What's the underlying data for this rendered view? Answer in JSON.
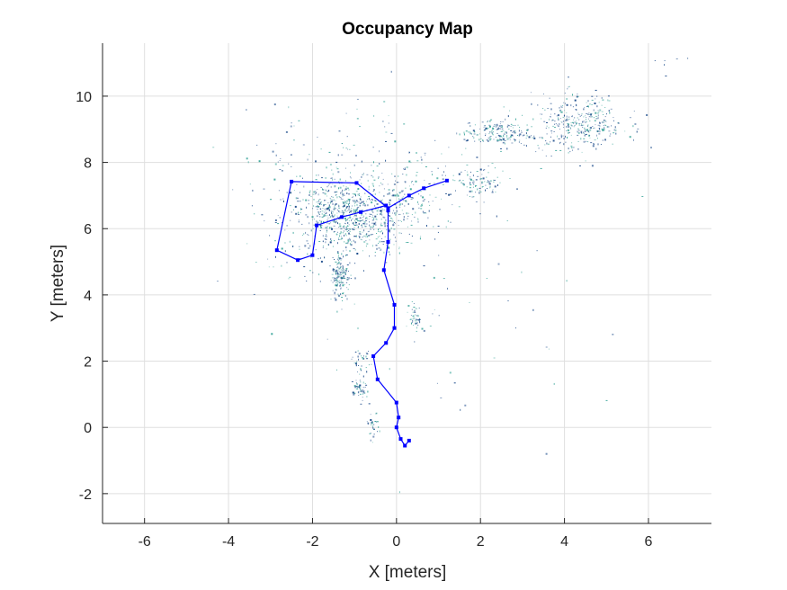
{
  "chart_data": {
    "type": "scatter",
    "title": "Occupancy Map",
    "xlabel": "X [meters]",
    "ylabel": "Y [meters]",
    "xlim": [
      -7,
      7.5
    ],
    "ylim": [
      -2.9,
      11.6
    ],
    "xticks": [
      -6,
      -4,
      -2,
      0,
      2,
      4,
      6
    ],
    "yticks": [
      -2,
      0,
      2,
      4,
      6,
      8,
      10
    ],
    "xtick_labels": [
      "-6",
      "-4",
      "-2",
      "0",
      "2",
      "4",
      "6"
    ],
    "ytick_labels": [
      "-2",
      "0",
      "2",
      "4",
      "6",
      "8",
      "10"
    ],
    "grid": true,
    "colors": {
      "path": "#0000ff",
      "occupied_dark": "#1f4e8c",
      "occupied_light": "#3aa59a"
    },
    "occupancy_clusters": [
      {
        "x": -1.05,
        "y": 6.3,
        "sx": 0.75,
        "sy": 0.55,
        "n": 700
      },
      {
        "x": -1.5,
        "y": 7.0,
        "sx": 0.5,
        "sy": 0.5,
        "n": 150
      },
      {
        "x": -1.35,
        "y": 4.6,
        "sx": 0.12,
        "sy": 0.4,
        "n": 160
      },
      {
        "x": 2.4,
        "y": 8.9,
        "sx": 0.4,
        "sy": 0.22,
        "n": 180
      },
      {
        "x": 4.3,
        "y": 9.2,
        "sx": 0.55,
        "sy": 0.42,
        "n": 360
      },
      {
        "x": 1.9,
        "y": 7.4,
        "sx": 0.35,
        "sy": 0.25,
        "n": 90
      },
      {
        "x": 0.45,
        "y": 3.3,
        "sx": 0.08,
        "sy": 0.25,
        "n": 50
      },
      {
        "x": -0.9,
        "y": 1.15,
        "sx": 0.08,
        "sy": 0.18,
        "n": 55
      },
      {
        "x": -0.85,
        "y": 2.05,
        "sx": 0.1,
        "sy": 0.2,
        "n": 35
      },
      {
        "x": -0.55,
        "y": 0.0,
        "sx": 0.08,
        "sy": 0.2,
        "n": 30
      },
      {
        "x": 0.6,
        "y": 7.1,
        "sx": 0.6,
        "sy": 0.45,
        "n": 90
      },
      {
        "x": -1.0,
        "y": 8.2,
        "sx": 1.4,
        "sy": 0.9,
        "n": 120
      },
      {
        "x": 1.0,
        "y": 3.5,
        "sx": 2.0,
        "sy": 2.6,
        "n": 50
      },
      {
        "x": -2.6,
        "y": 5.0,
        "sx": 0.9,
        "sy": 0.9,
        "n": 35
      },
      {
        "x": 6.5,
        "y": 11.0,
        "sx": 0.25,
        "sy": 0.2,
        "n": 6
      }
    ],
    "path": {
      "x": [
        0.3,
        0.2,
        0.1,
        0.0,
        0.05,
        0.0,
        -0.45,
        -0.55,
        -0.25,
        -0.05,
        -0.05,
        -0.3,
        -0.2,
        -0.2,
        -0.25,
        -0.85,
        -1.3,
        -1.9,
        -2.0,
        -2.35,
        -2.85,
        -2.5,
        -0.95,
        -0.2,
        0.3,
        0.65,
        1.2
      ],
      "y": [
        -0.4,
        -0.55,
        -0.35,
        0.0,
        0.3,
        0.75,
        1.45,
        2.15,
        2.55,
        3.0,
        3.7,
        4.75,
        5.6,
        6.55,
        6.7,
        6.5,
        6.35,
        6.1,
        5.2,
        5.05,
        5.35,
        7.42,
        7.38,
        6.62,
        7.0,
        7.22,
        7.45
      ]
    }
  }
}
